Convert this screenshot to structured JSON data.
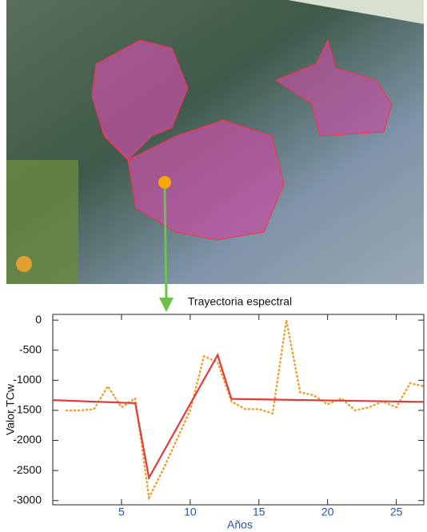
{
  "chart_data": {
    "type": "line",
    "title": "Trayectoria espectral",
    "x_label": "Años",
    "y_label": "Valor TCw",
    "xlim": [
      0,
      27
    ],
    "xticks": [
      5,
      10,
      15,
      20,
      25
    ],
    "ylim": [
      -3070,
      95
    ],
    "yticks": [
      0,
      -500,
      -1000,
      -1500,
      -2000,
      -2500,
      -3000
    ],
    "series": [
      {
        "color": "#f0a030",
        "style": "dotted",
        "x": [
          1,
          2,
          3,
          4,
          5,
          6,
          7,
          8,
          9,
          10,
          11,
          12,
          13,
          14,
          15,
          16,
          17,
          18,
          19,
          20,
          21,
          22,
          23,
          24,
          25,
          26,
          27
        ],
        "values": [
          -1500,
          -1500,
          -1480,
          -1100,
          -1450,
          -1300,
          -2950,
          -2500,
          -2000,
          -1500,
          -600,
          -700,
          -1350,
          -1480,
          -1480,
          -1550,
          0,
          -1200,
          -1250,
          -1400,
          -1300,
          -1500,
          -1450,
          -1350,
          -1450,
          -1050,
          -1100
        ]
      },
      {
        "color": "#e03c3c",
        "style": "solid",
        "x": [
          0,
          6,
          7,
          12,
          13,
          27
        ],
        "values": [
          -1330,
          -1380,
          -2620,
          -580,
          -1310,
          -1360
        ]
      }
    ]
  }
}
